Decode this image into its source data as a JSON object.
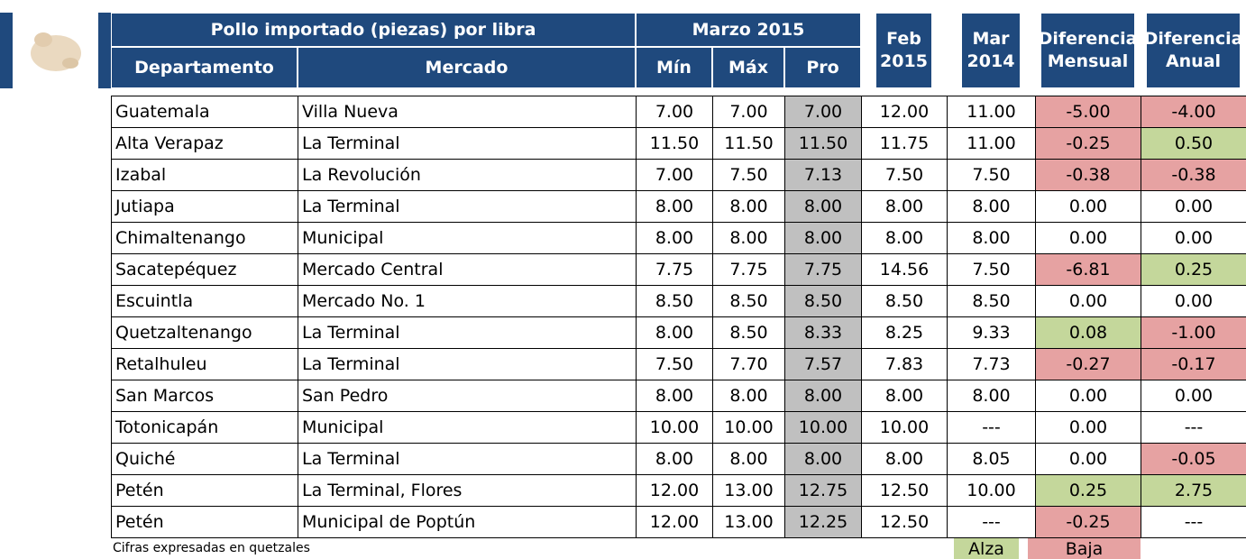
{
  "header": {
    "title": "Pollo importado (piezas) por libra",
    "period": "Marzo 2015",
    "columns": [
      "Departamento",
      "Mercado",
      "Mín",
      "Máx",
      "Pro",
      "Feb 2015",
      "Mar 2014",
      "Diferencia Mensual",
      "Diferencia Anual"
    ]
  },
  "table": {
    "rows": [
      [
        "Guatemala",
        "Villa Nueva",
        "7.00",
        "7.00",
        "7.00",
        "12.00",
        "11.00",
        "-5.00",
        "-4.00"
      ],
      [
        "Alta Verapaz",
        "La Terminal",
        "11.50",
        "11.50",
        "11.50",
        "11.75",
        "11.00",
        "-0.25",
        "0.50"
      ],
      [
        "Izabal",
        "La Revolución",
        "7.00",
        "7.50",
        "7.13",
        "7.50",
        "7.50",
        "-0.38",
        "-0.38"
      ],
      [
        "Jutiapa",
        "La Terminal",
        "8.00",
        "8.00",
        "8.00",
        "8.00",
        "8.00",
        "0.00",
        "0.00"
      ],
      [
        "Chimaltenango",
        "Municipal",
        "8.00",
        "8.00",
        "8.00",
        "8.00",
        "8.00",
        "0.00",
        "0.00"
      ],
      [
        "Sacatepéquez",
        "Mercado Central",
        "7.75",
        "7.75",
        "7.75",
        "14.56",
        "7.50",
        "-6.81",
        "0.25"
      ],
      [
        "Escuintla",
        "Mercado No. 1",
        "8.50",
        "8.50",
        "8.50",
        "8.50",
        "8.50",
        "0.00",
        "0.00"
      ],
      [
        "Quetzaltenango",
        "La Terminal",
        "8.00",
        "8.50",
        "8.33",
        "8.25",
        "9.33",
        "0.08",
        "-1.00"
      ],
      [
        "Retalhuleu",
        "La Terminal",
        "7.50",
        "7.70",
        "7.57",
        "7.83",
        "7.73",
        "-0.27",
        "-0.17"
      ],
      [
        "San Marcos",
        "San Pedro",
        "8.00",
        "8.00",
        "8.00",
        "8.00",
        "8.00",
        "0.00",
        "0.00"
      ],
      [
        "Totonicapán",
        "Municipal",
        "10.00",
        "10.00",
        "10.00",
        "10.00",
        "---",
        "0.00",
        "---"
      ],
      [
        "Quiché",
        "La Terminal",
        "8.00",
        "8.00",
        "8.00",
        "8.00",
        "8.05",
        "0.00",
        "-0.05"
      ],
      [
        "Petén",
        "La Terminal, Flores",
        "12.00",
        "13.00",
        "12.75",
        "12.50",
        "10.00",
        "0.25",
        "2.75"
      ],
      [
        "Petén",
        "Municipal de Poptún",
        "12.00",
        "13.00",
        "12.25",
        "12.50",
        "---",
        "-0.25",
        "---"
      ]
    ]
  },
  "footer": {
    "note": "Cifras expresadas en quetzales",
    "legend": [
      "Alza",
      "Baja"
    ]
  }
}
